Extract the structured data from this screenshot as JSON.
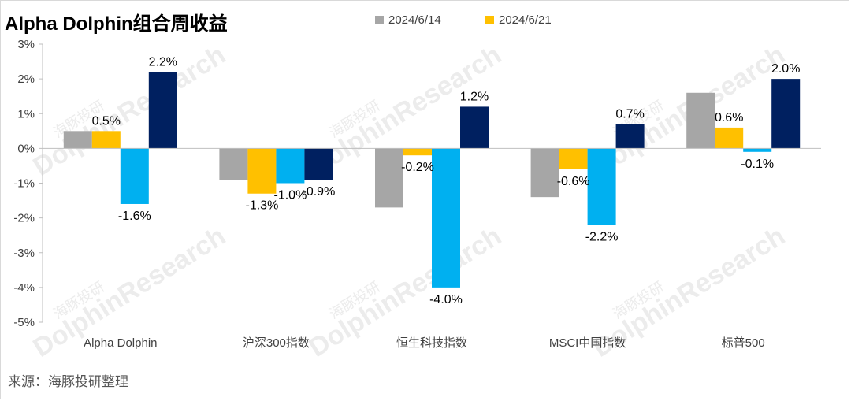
{
  "chart_data": {
    "type": "bar",
    "title": "Alpha Dolphin组合周收益",
    "categories": [
      "Alpha Dolphin",
      "沪深300指数",
      "恒生科技指数",
      "MSCI中国指数",
      "标普500"
    ],
    "ylim": [
      -5,
      3
    ],
    "yticks": [
      3,
      2,
      1,
      0,
      -1,
      -2,
      -3,
      -4,
      -5
    ],
    "ytick_suffix": "%",
    "legend_position": "top",
    "grid": false,
    "series": [
      {
        "name": "2024/6/14",
        "color": "#a6a6a6",
        "values": [
          0.5,
          -0.9,
          -1.7,
          -1.4,
          1.6
        ],
        "labels": [
          "",
          "",
          "",
          "",
          ""
        ]
      },
      {
        "name": "2024/6/21",
        "color": "#ffc000",
        "values": [
          0.5,
          -1.3,
          -0.2,
          -0.6,
          0.6
        ],
        "labels": [
          "0.5%",
          "-1.3%",
          "-0.2%",
          "-0.6%",
          "0.6%"
        ]
      },
      {
        "name": "",
        "color": "#00b0f0",
        "values": [
          -1.6,
          -1.0,
          -4.0,
          -2.2,
          -0.1
        ],
        "labels": [
          "-1.6%",
          "-1.0%",
          "-4.0%",
          "-2.2%",
          "-0.1%"
        ]
      },
      {
        "name": "",
        "color": "#002060",
        "values": [
          2.2,
          -0.9,
          1.2,
          0.7,
          2.0
        ],
        "labels": [
          "2.2%",
          "-0.9%",
          "1.2%",
          "0.7%",
          "2.0%"
        ]
      }
    ]
  },
  "source": "来源：海豚投研整理",
  "watermark": "DolphinResearch",
  "watermark_cn": "海豚投研",
  "colors": {
    "axis": "#bfbfbf",
    "text": "#404040"
  }
}
